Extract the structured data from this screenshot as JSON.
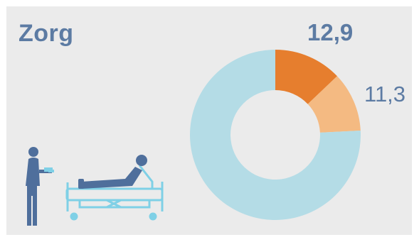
{
  "title": "Zorg",
  "colors": {
    "background": "#ebebeb",
    "text": "#5c7ba3",
    "dark_orange": "#e67e2e",
    "light_orange": "#f4ba82",
    "light_blue": "#b4dce6",
    "figure": "#4f6f9c"
  },
  "icons": [
    "caregiver-figure-icon",
    "hospital-bed-icon",
    "patient-icon"
  ],
  "chart_data": {
    "type": "pie",
    "style": "donut",
    "slices": [
      {
        "value": 12.9,
        "label": "12,9",
        "color": "#e67e2e"
      },
      {
        "value": 11.3,
        "label": "11,3",
        "color": "#f4ba82"
      },
      {
        "value": 75.8,
        "label": "",
        "color": "#b4dce6"
      }
    ]
  }
}
